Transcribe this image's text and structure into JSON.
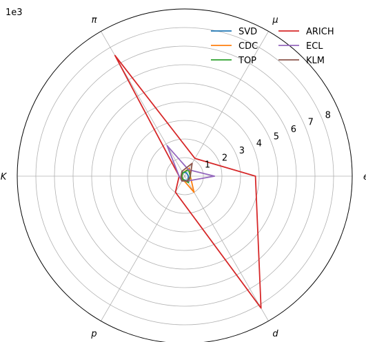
{
  "chart_data": {
    "type": "radar",
    "scale_label": "1e3",
    "axes": [
      "e",
      "μ",
      "π",
      "K",
      "p",
      "d"
    ],
    "r_ticks": [
      1,
      2,
      3,
      4,
      5,
      6,
      7,
      8
    ],
    "rlim": [
      0,
      9
    ],
    "grid": true,
    "legend_position": "top-right",
    "series": [
      {
        "name": "SVD",
        "color": "#1f77b4",
        "values": [
          0.2,
          0.2,
          0.25,
          0.2,
          0.2,
          0.3
        ]
      },
      {
        "name": "CDC",
        "color": "#ff7f0e",
        "values": [
          0.3,
          0.5,
          0.2,
          0.15,
          0.2,
          1.0
        ]
      },
      {
        "name": "TOP",
        "color": "#2ca02c",
        "values": [
          0.3,
          0.4,
          0.2,
          0.15,
          0.2,
          0.4
        ]
      },
      {
        "name": "ARICH",
        "color": "#d62728",
        "values": [
          3.8,
          1.1,
          7.5,
          0.3,
          1.0,
          8.2
        ]
      },
      {
        "name": "ECL",
        "color": "#9467bd",
        "values": [
          1.6,
          0.4,
          1.9,
          0.3,
          0.3,
          0.3
        ]
      },
      {
        "name": "KLM",
        "color": "#8c564b",
        "values": [
          0.3,
          0.8,
          0.3,
          0.2,
          0.3,
          0.3
        ]
      }
    ]
  }
}
